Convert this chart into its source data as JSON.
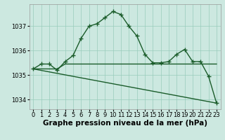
{
  "bg_color": "#cce8e0",
  "grid_color": "#99ccbb",
  "line_color": "#1a5c2a",
  "xlabel": "Graphe pression niveau de la mer (hPa)",
  "ylim": [
    1033.6,
    1037.9
  ],
  "xlim": [
    -0.5,
    23.5
  ],
  "yticks": [
    1034,
    1035,
    1036,
    1037
  ],
  "xticks": [
    0,
    1,
    2,
    3,
    4,
    5,
    6,
    7,
    8,
    9,
    10,
    11,
    12,
    13,
    14,
    15,
    16,
    17,
    18,
    19,
    20,
    21,
    22,
    23
  ],
  "line1_x": [
    0,
    1,
    2,
    3,
    4,
    5,
    6,
    7,
    8,
    9,
    10,
    11,
    12,
    13,
    14,
    15,
    16,
    17,
    18,
    19,
    20,
    21,
    22,
    23
  ],
  "line1_y": [
    1035.25,
    1035.45,
    1035.45,
    1035.2,
    1035.55,
    1035.8,
    1036.5,
    1037.0,
    1037.1,
    1037.35,
    1037.6,
    1037.48,
    1037.0,
    1036.6,
    1035.85,
    1035.5,
    1035.5,
    1035.55,
    1035.85,
    1036.05,
    1035.55,
    1035.55,
    1034.95,
    1033.85
  ],
  "line2_x": [
    0,
    3,
    4,
    5,
    6,
    7,
    8,
    9,
    10,
    11,
    12,
    13,
    14,
    15,
    16,
    17,
    18,
    19,
    20,
    21,
    22,
    23
  ],
  "line2_y": [
    1035.25,
    1035.25,
    1035.45,
    1035.45,
    1035.45,
    1035.45,
    1035.45,
    1035.45,
    1035.45,
    1035.45,
    1035.45,
    1035.45,
    1035.45,
    1035.45,
    1035.45,
    1035.45,
    1035.45,
    1035.45,
    1035.45,
    1035.45,
    1035.45,
    1035.45
  ],
  "line3_x": [
    0,
    23
  ],
  "line3_y": [
    1035.25,
    1033.85
  ],
  "marker": "+",
  "markersize": 4,
  "markeredgewidth": 1.0,
  "linewidth": 1.0,
  "xlabel_fontsize": 7.5,
  "tick_fontsize": 6,
  "ytick_fontsize": 6
}
